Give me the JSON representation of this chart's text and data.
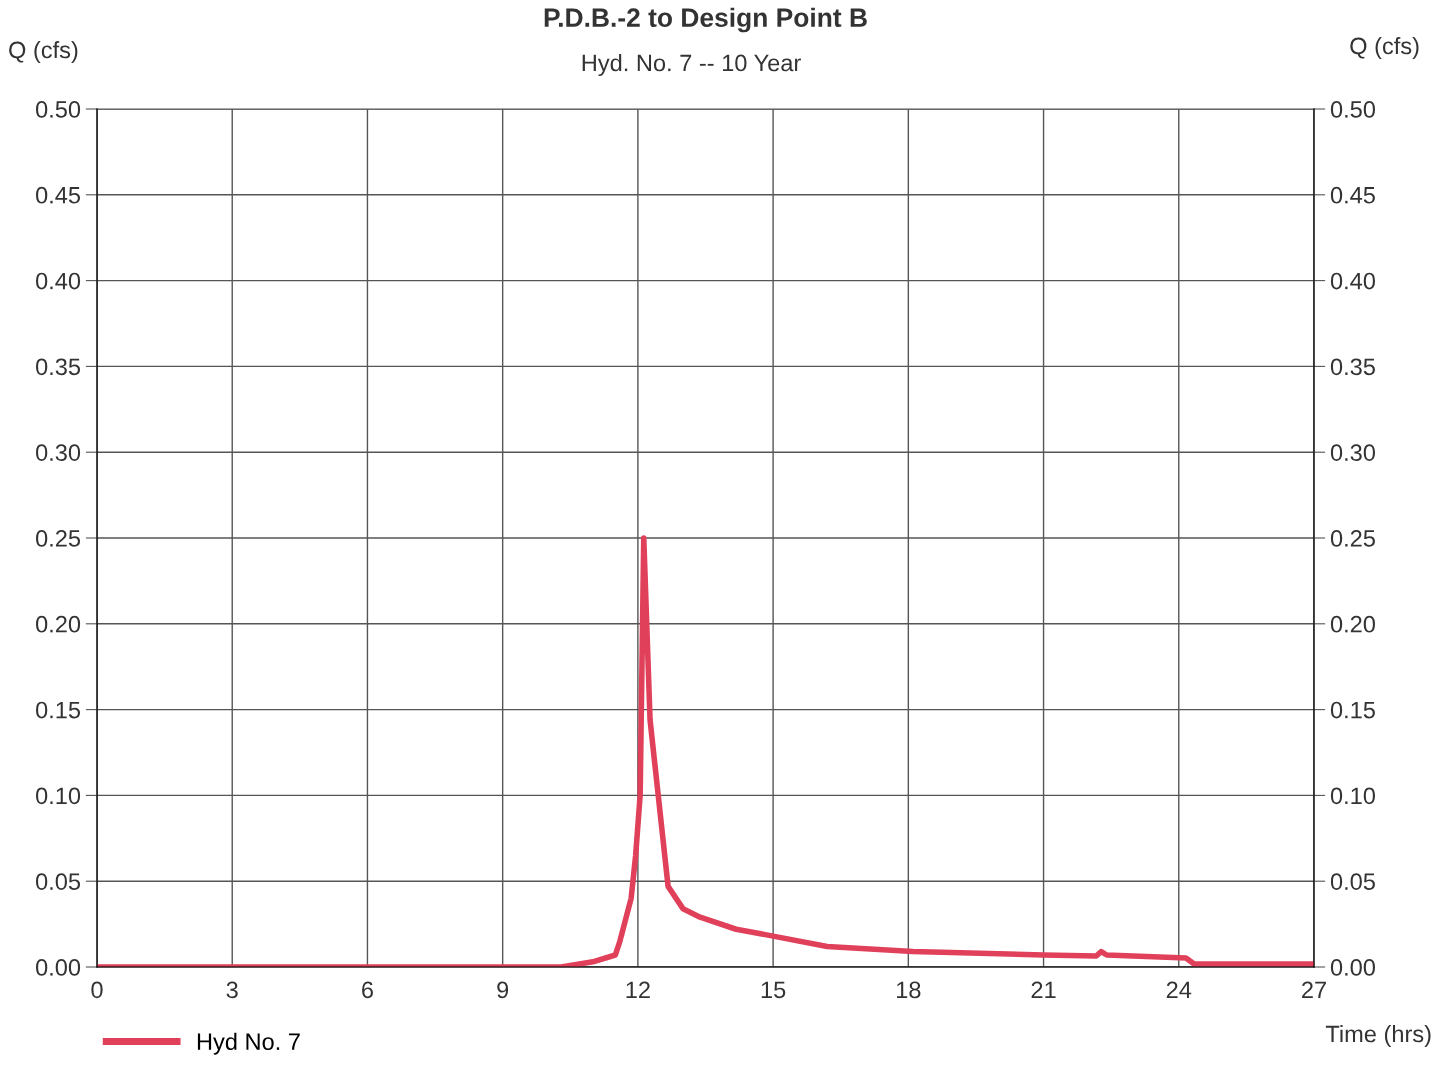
{
  "chart_data": {
    "type": "line",
    "title": "P.D.B.-2 to Design Point B",
    "subtitle": "Hyd. No. 7 -- 10 Year",
    "xlabel": "Time (hrs)",
    "ylabel": "Q (cfs)",
    "y2label": "Q (cfs)",
    "series": [
      {
        "name": "Hyd No. 7",
        "color": "#e0405a",
        "x": [
          0,
          10.3,
          11.0,
          11.5,
          11.6,
          11.85,
          11.95,
          12.05,
          12.13,
          12.27,
          12.67,
          13.0,
          13.38,
          14.18,
          15.0,
          16.2,
          18.1,
          21.0,
          22.17,
          22.28,
          22.4,
          24.16,
          24.34,
          27
        ],
        "values": [
          0,
          0,
          0.003,
          0.007,
          0.015,
          0.04,
          0.065,
          0.1,
          0.25,
          0.144,
          0.047,
          0.034,
          0.029,
          0.022,
          0.018,
          0.012,
          0.009,
          0.007,
          0.0064,
          0.009,
          0.007,
          0.0052,
          0.0017,
          0.0017
        ]
      }
    ],
    "xlim": [
      0,
      27
    ],
    "xticks": [
      0,
      3,
      6,
      9,
      12,
      15,
      18,
      21,
      24,
      27
    ],
    "ylim": [
      0,
      0.5
    ],
    "yticks": [
      {
        "value": 0,
        "label": "0.00"
      },
      {
        "value": 0.05,
        "label": "0.05"
      },
      {
        "value": 0.1,
        "label": "0.10"
      },
      {
        "value": 0.15,
        "label": "0.15"
      },
      {
        "value": 0.2,
        "label": "0.20"
      },
      {
        "value": 0.25,
        "label": "0.25"
      },
      {
        "value": 0.3,
        "label": "0.30"
      },
      {
        "value": 0.35,
        "label": "0.35"
      },
      {
        "value": 0.4,
        "label": "0.40"
      },
      {
        "value": 0.45,
        "label": "0.45"
      },
      {
        "value": 0.5,
        "label": "0.50"
      }
    ],
    "y2lim": [
      0,
      0.5
    ],
    "y2ticks": [
      {
        "value": 0,
        "label": "0.00"
      },
      {
        "value": 0.05,
        "label": "0.05"
      },
      {
        "value": 0.1,
        "label": "0.10"
      },
      {
        "value": 0.15,
        "label": "0.15"
      },
      {
        "value": 0.2,
        "label": "0.20"
      },
      {
        "value": 0.25,
        "label": "0.25"
      },
      {
        "value": 0.3,
        "label": "0.30"
      },
      {
        "value": 0.35,
        "label": "0.35"
      },
      {
        "value": 0.4,
        "label": "0.40"
      },
      {
        "value": 0.45,
        "label": "0.45"
      },
      {
        "value": 0.5,
        "label": "0.50"
      }
    ],
    "grid": true,
    "legend": "bottom left",
    "marker": "none",
    "line_style": "solid"
  }
}
